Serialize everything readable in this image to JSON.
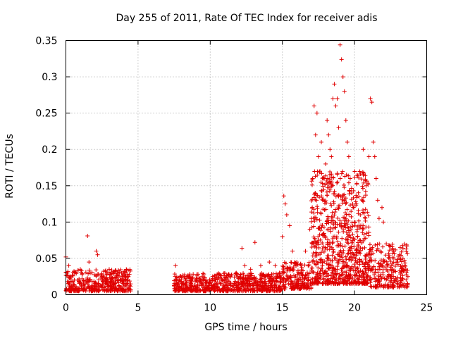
{
  "chart_data": {
    "type": "scatter",
    "title": "Day 255 of 2011, Rate Of TEC Index for receiver adis",
    "xlabel": "GPS time / hours",
    "ylabel": "ROTI / TECUs",
    "xlim": [
      0,
      25
    ],
    "ylim": [
      0,
      0.35
    ],
    "x_ticks": [
      "0",
      "5",
      "10",
      "15",
      "20",
      "25"
    ],
    "y_ticks": [
      "0",
      "0.05",
      "0.1",
      "0.15",
      "0.2",
      "0.25",
      "0.3",
      "0.35"
    ],
    "grid": true,
    "marker": "+",
    "color": "#e00000",
    "x": [
      0.0,
      0.1,
      0.2,
      0.3,
      0.4,
      0.6,
      0.8,
      1.0,
      1.2,
      1.5,
      1.6,
      1.8,
      2.1,
      2.2,
      2.5,
      2.8,
      3.0,
      3.3,
      3.6,
      3.9,
      4.2,
      4.4,
      7.6,
      7.9,
      8.3,
      8.7,
      9.1,
      9.5,
      9.9,
      10.3,
      10.7,
      11.0,
      11.4,
      11.8,
      12.2,
      12.4,
      12.8,
      13.1,
      13.5,
      13.8,
      14.1,
      14.5,
      14.8,
      15.0,
      15.1,
      15.2,
      15.3,
      15.5,
      15.7,
      16.0,
      16.3,
      16.6,
      16.9,
      17.1,
      17.2,
      17.3,
      17.4,
      17.5,
      17.6,
      17.7,
      17.8,
      17.9,
      18.0,
      18.1,
      18.2,
      18.3,
      18.4,
      18.5,
      18.6,
      18.7,
      18.8,
      18.9,
      19.0,
      19.1,
      19.2,
      19.3,
      19.4,
      19.5,
      19.6,
      19.7,
      19.8,
      19.9,
      20.0,
      20.2,
      20.4,
      20.6,
      20.8,
      21.0,
      21.1,
      21.2,
      21.3,
      21.4,
      21.5,
      21.6,
      21.7,
      21.9,
      22.0,
      22.2,
      22.4,
      22.7,
      23.0,
      23.3,
      23.6,
      23.7
    ],
    "y": [
      0.052,
      0.018,
      0.04,
      0.025,
      0.012,
      0.03,
      0.02,
      0.035,
      0.015,
      0.081,
      0.045,
      0.03,
      0.06,
      0.055,
      0.025,
      0.02,
      0.035,
      0.018,
      0.03,
      0.022,
      0.034,
      0.028,
      0.04,
      0.025,
      0.015,
      0.018,
      0.012,
      0.01,
      0.008,
      0.012,
      0.015,
      0.02,
      0.025,
      0.03,
      0.064,
      0.04,
      0.035,
      0.072,
      0.04,
      0.025,
      0.045,
      0.04,
      0.03,
      0.08,
      0.136,
      0.125,
      0.11,
      0.095,
      0.06,
      0.045,
      0.04,
      0.06,
      0.09,
      0.16,
      0.26,
      0.22,
      0.25,
      0.19,
      0.17,
      0.21,
      0.13,
      0.16,
      0.18,
      0.24,
      0.22,
      0.2,
      0.19,
      0.27,
      0.29,
      0.26,
      0.27,
      0.23,
      0.344,
      0.324,
      0.3,
      0.28,
      0.24,
      0.21,
      0.19,
      0.16,
      0.14,
      0.12,
      0.1,
      0.08,
      0.11,
      0.2,
      0.15,
      0.19,
      0.27,
      0.265,
      0.21,
      0.19,
      0.16,
      0.13,
      0.105,
      0.12,
      0.1,
      0.07,
      0.05,
      0.06,
      0.045,
      0.04,
      0.03,
      0.025
    ],
    "dense_bands": [
      {
        "x_start": 0.0,
        "x_end": 4.5,
        "y_low": 0.005,
        "y_high": 0.035
      },
      {
        "x_start": 7.5,
        "x_end": 15.0,
        "y_low": 0.005,
        "y_high": 0.03
      },
      {
        "x_start": 15.0,
        "x_end": 17.0,
        "y_low": 0.008,
        "y_high": 0.045
      },
      {
        "x_start": 17.0,
        "x_end": 21.0,
        "y_low": 0.015,
        "y_high": 0.17
      },
      {
        "x_start": 21.0,
        "x_end": 23.7,
        "y_low": 0.01,
        "y_high": 0.07
      }
    ]
  }
}
